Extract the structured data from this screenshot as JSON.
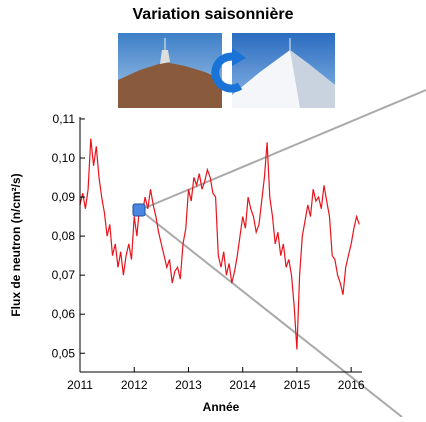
{
  "chart_data": {
    "type": "line",
    "title": "Variation saisonnière",
    "xlabel": "Année",
    "ylabel": "Flux de neutron (n/cm²/s)",
    "x": [
      2011.0,
      2011.05,
      2011.1,
      2011.15,
      2011.2,
      2011.25,
      2011.3,
      2011.35,
      2011.4,
      2011.45,
      2011.5,
      2011.55,
      2011.6,
      2011.65,
      2011.7,
      2011.75,
      2011.8,
      2011.85,
      2011.9,
      2011.95,
      2012.0,
      2012.05,
      2012.1,
      2012.15,
      2012.2,
      2012.25,
      2012.3,
      2012.35,
      2012.4,
      2012.45,
      2012.5,
      2012.55,
      2012.6,
      2012.65,
      2012.7,
      2012.75,
      2012.8,
      2012.85,
      2012.9,
      2012.95,
      2013.0,
      2013.05,
      2013.1,
      2013.15,
      2013.2,
      2013.25,
      2013.3,
      2013.35,
      2013.4,
      2013.45,
      2013.5,
      2013.55,
      2013.6,
      2013.65,
      2013.7,
      2013.75,
      2013.8,
      2013.85,
      2013.9,
      2013.95,
      2014.0,
      2014.05,
      2014.1,
      2014.15,
      2014.2,
      2014.25,
      2014.3,
      2014.35,
      2014.4,
      2014.45,
      2014.5,
      2014.55,
      2014.6,
      2014.65,
      2014.7,
      2014.75,
      2014.8,
      2014.85,
      2014.9,
      2014.95,
      2015.0,
      2015.05,
      2015.1,
      2015.15,
      2015.2,
      2015.25,
      2015.3,
      2015.35,
      2015.4,
      2015.45,
      2015.5,
      2015.55,
      2015.6,
      2015.65,
      2015.7,
      2015.75,
      2015.8,
      2015.85,
      2015.9,
      2015.95,
      2016.0,
      2016.05,
      2016.1,
      2016.15
    ],
    "series": [
      {
        "color": "#e8141c",
        "values": [
          0.088,
          0.091,
          0.087,
          0.092,
          0.105,
          0.098,
          0.103,
          0.095,
          0.09,
          0.086,
          0.08,
          0.083,
          0.075,
          0.078,
          0.072,
          0.076,
          0.07,
          0.075,
          0.078,
          0.074,
          0.085,
          0.08,
          0.088,
          0.086,
          0.09,
          0.087,
          0.092,
          0.088,
          0.085,
          0.081,
          0.078,
          0.075,
          0.072,
          0.074,
          0.068,
          0.071,
          0.072,
          0.069,
          0.078,
          0.082,
          0.092,
          0.089,
          0.095,
          0.093,
          0.096,
          0.092,
          0.094,
          0.097,
          0.095,
          0.091,
          0.09,
          0.075,
          0.072,
          0.076,
          0.07,
          0.073,
          0.068,
          0.071,
          0.075,
          0.08,
          0.085,
          0.082,
          0.09,
          0.087,
          0.085,
          0.081,
          0.083,
          0.089,
          0.095,
          0.104,
          0.09,
          0.085,
          0.078,
          0.081,
          0.075,
          0.078,
          0.072,
          0.074,
          0.07,
          0.062,
          0.051,
          0.07,
          0.08,
          0.084,
          0.088,
          0.085,
          0.092,
          0.089,
          0.09,
          0.087,
          0.093,
          0.089,
          0.085,
          0.075,
          0.074,
          0.07,
          0.068,
          0.065,
          0.072,
          0.075,
          0.078,
          0.082,
          0.085,
          0.083
        ]
      }
    ],
    "xlim": [
      2011,
      2016.2
    ],
    "ylim": [
      0.0452,
      0.1105
    ],
    "xticks": [
      2011,
      2012,
      2013,
      2014,
      2015,
      2016
    ],
    "yticks": [
      {
        "value": 0.05,
        "label": "0,05"
      },
      {
        "value": 0.06,
        "label": "0,06"
      },
      {
        "value": 0.07,
        "label": "0,07"
      },
      {
        "value": 0.08,
        "label": "0,08"
      },
      {
        "value": 0.09,
        "label": "0,09"
      },
      {
        "value": 0.1,
        "label": "0,10"
      },
      {
        "value": 0.11,
        "label": "0,11"
      }
    ]
  }
}
